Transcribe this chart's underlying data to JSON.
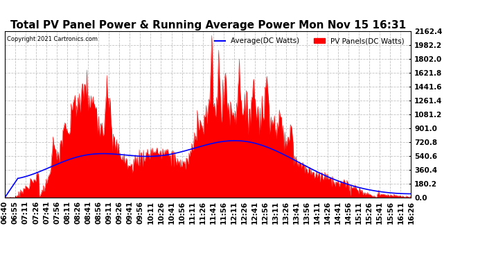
{
  "title": "Total PV Panel Power & Running Average Power Mon Nov 15 16:31",
  "copyright": "Copyright 2021 Cartronics.com",
  "legend_avg": "Average(DC Watts)",
  "legend_pv": "PV Panels(DC Watts)",
  "avg_color": "blue",
  "pv_color": "red",
  "bg_color": "#ffffff",
  "grid_color": "#bbbbbb",
  "yticks": [
    0.0,
    180.2,
    360.4,
    540.6,
    720.8,
    901.0,
    1081.2,
    1261.4,
    1441.6,
    1621.8,
    1802.0,
    1982.2,
    2162.4
  ],
  "ymax": 2162.4,
  "ymin": 0.0,
  "title_fontsize": 11,
  "tick_fontsize": 7.5,
  "xtick_labels": [
    "06:40",
    "06:55",
    "07:11",
    "07:26",
    "07:41",
    "07:56",
    "08:11",
    "08:26",
    "08:41",
    "08:56",
    "09:11",
    "09:26",
    "09:41",
    "09:56",
    "10:11",
    "10:26",
    "10:41",
    "10:56",
    "11:11",
    "11:26",
    "11:41",
    "11:56",
    "12:11",
    "12:26",
    "12:41",
    "12:56",
    "13:11",
    "13:26",
    "13:41",
    "13:56",
    "14:11",
    "14:26",
    "14:41",
    "14:56",
    "15:11",
    "15:26",
    "15:41",
    "15:56",
    "16:11",
    "16:26"
  ]
}
